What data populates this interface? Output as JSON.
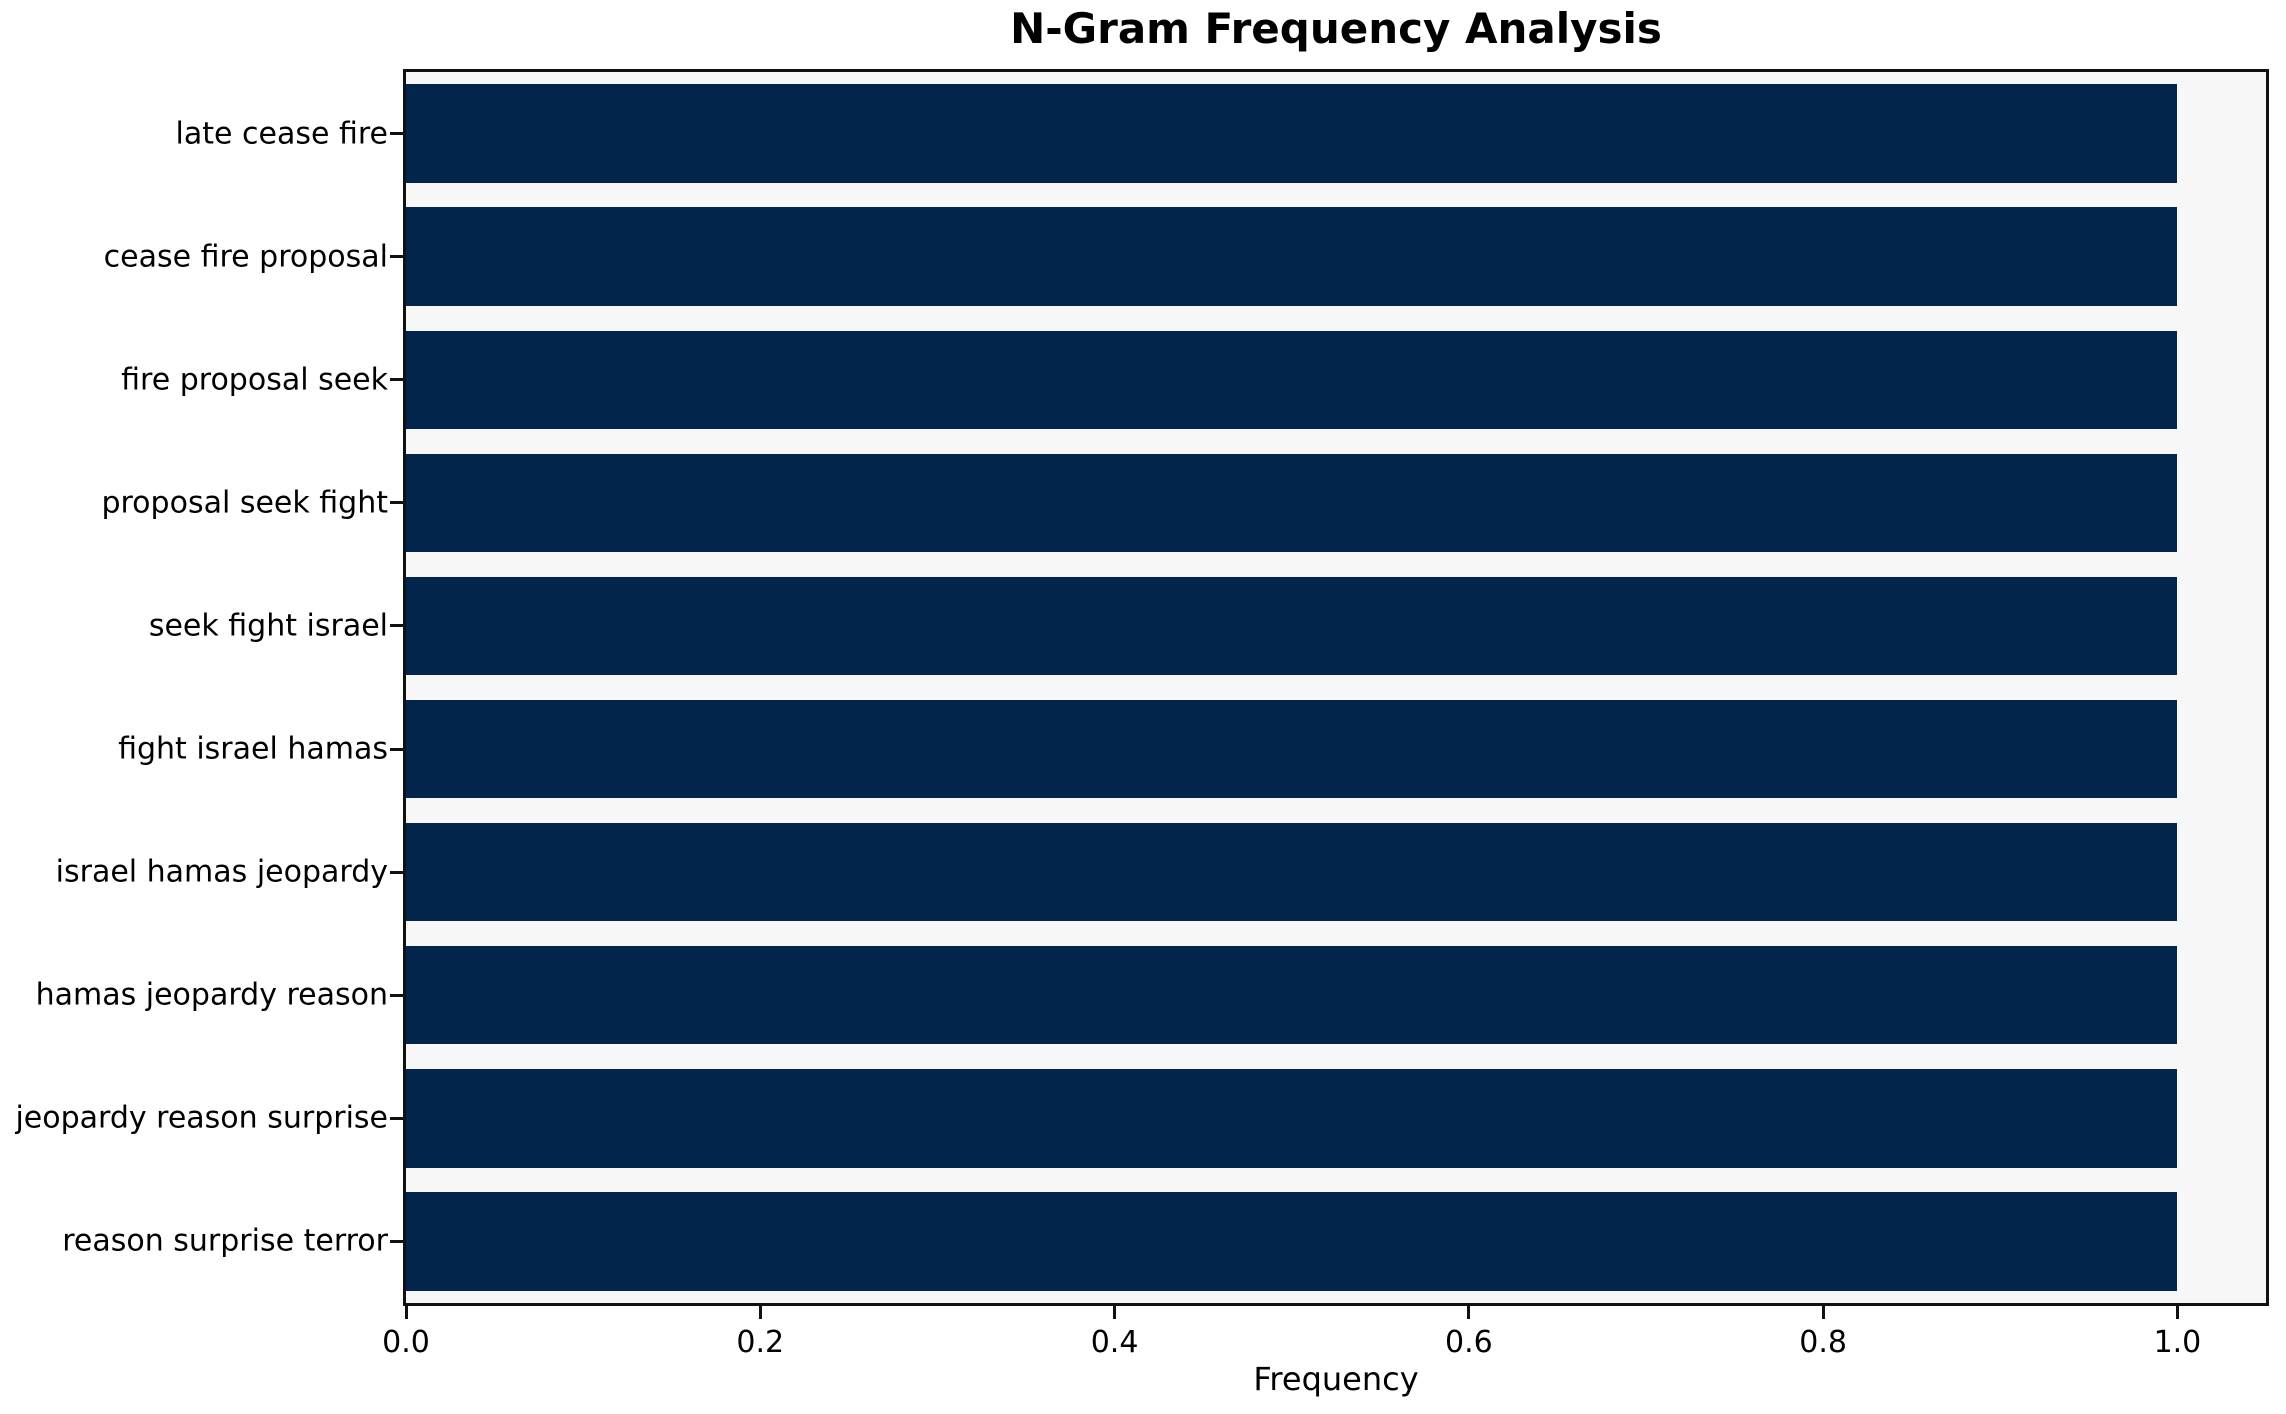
{
  "chart_data": {
    "type": "bar",
    "orientation": "horizontal",
    "title": "N-Gram Frequency Analysis",
    "xlabel": "Frequency",
    "ylabel": "",
    "categories": [
      "late cease fire",
      "cease fire proposal",
      "fire proposal seek",
      "proposal seek fight",
      "seek fight israel",
      "fight israel hamas",
      "israel hamas jeopardy",
      "hamas jeopardy reason",
      "jeopardy reason surprise",
      "reason surprise terror"
    ],
    "values": [
      1.0,
      1.0,
      1.0,
      1.0,
      1.0,
      1.0,
      1.0,
      1.0,
      1.0,
      1.0
    ],
    "xticks": [
      "0.0",
      "0.2",
      "0.4",
      "0.6",
      "0.8",
      "1.0"
    ],
    "xlim": [
      0,
      1.05
    ],
    "grid": false,
    "legend": null,
    "bar_color": "#03254c",
    "plot_background": "#f7f7f7",
    "figure_background": "#ffffff",
    "spine_color": "#111111"
  }
}
